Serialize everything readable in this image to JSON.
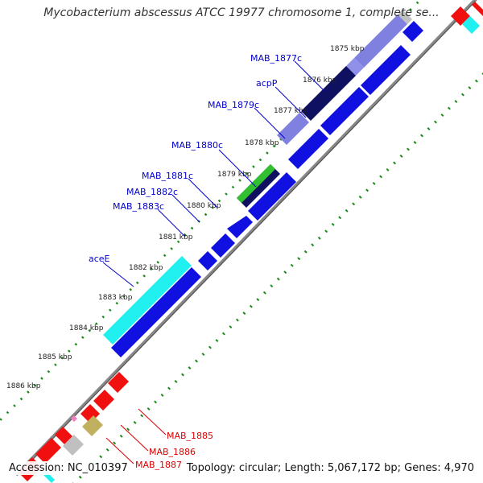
{
  "title": "Mycobacterium abscessus ATCC 19977 chromosome 1, complete se...",
  "accession_text": "Accession: NC_010397",
  "summary_text": "Topology: circular; Length: 5,067,172 bp; Genes: 4,970",
  "colors": {
    "forward_blue": "#1010e0",
    "forward_lilac": "#8080e0",
    "navy": "#101060",
    "cyan": "#20f0f0",
    "green": "#30c030",
    "red": "#f01010",
    "grey": "#c0c0c0",
    "khaki": "#c0b060",
    "pink": "#f080c0",
    "backbone": "#666666",
    "gc_tick": "#1a8a1a",
    "label_blue": "#0000cc",
    "label_red": "#dd0000"
  },
  "ticks": [
    "1875 kbp",
    "1876 kbp",
    "1877 kbp",
    "1878 kbp",
    "1879 kbp",
    "1880 kbp",
    "1881 kbp",
    "1882 kbp",
    "1883 kbp",
    "1884 kbp",
    "1885 kbp",
    "1886 kbp"
  ],
  "gene_labels": {
    "mab1877c": "MAB_1877c",
    "acpP": "acpP",
    "mab1879c": "MAB_1879c",
    "mab1880c": "MAB_1880c",
    "mab1881c": "MAB_1881c",
    "mab1882c": "MAB_1882c",
    "mab1883c": "MAB_1883c",
    "aceE": "aceE",
    "mab1885": "MAB_1885",
    "mab1886": "MAB_1886",
    "mab1887": "MAB_1887"
  }
}
